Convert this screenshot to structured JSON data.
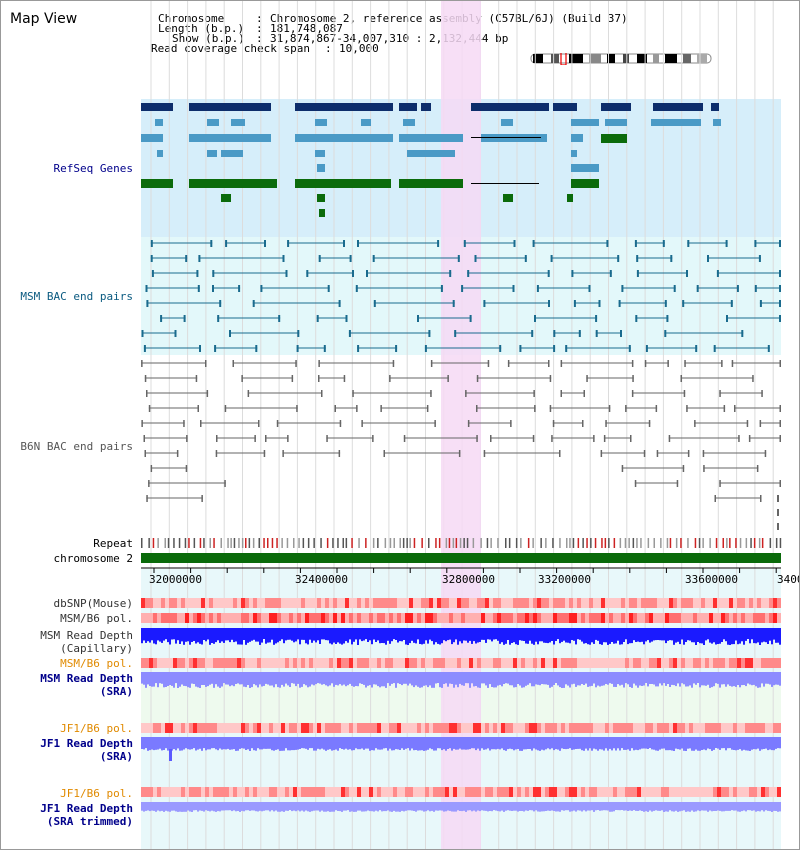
{
  "view_title": "Map View",
  "header": {
    "chromosome_label": "Chromosome",
    "chromosome_value": "Chromosome 2, reference assembly (C57BL/6J) (Build 37)",
    "length_label": "Length (b.p.)",
    "length_value": "181,748,087",
    "show_label": "Show (b.p.)",
    "show_value": "31,874,867-34,007,310 : 2,132,444 bp",
    "coverage_label": "Read coverage check span",
    "coverage_value": "10,000"
  },
  "tracks": {
    "refseq": "RefSeq Genes",
    "msm_bac": "MSM BAC end pairs",
    "b6n_bac": "B6N BAC end pairs",
    "repeat": "Repeat",
    "chromosome": "chromosome 2",
    "dbsnp": "dbSNP(Mouse)",
    "msm_b6_pol_1": "MSM/B6 pol.",
    "msm_depth_cap_1": "MSM Read Depth",
    "msm_depth_cap_2": "(Capillary)",
    "msm_b6_pol_2": "MSM/B6 pol.",
    "msm_depth_sra_1": "MSM Read Depth",
    "msm_depth_sra_2": "(SRA)",
    "jf1_b6_pol_1": "JF1/B6 pol.",
    "jf1_depth_sra_1": "JF1 Read Depth",
    "jf1_depth_sra_2": "(SRA)",
    "jf1_b6_pol_2": "JF1/B6 pol.",
    "jf1_depth_trim_1": "JF1 Read Depth",
    "jf1_depth_trim_2": "(SRA trimmed)"
  },
  "axis": {
    "ticks": [
      "32000000",
      "32400000",
      "32800000",
      "33200000",
      "33600000",
      "3400"
    ]
  },
  "colors": {
    "highlight": "#f6d9f4",
    "refseq_bg": "#d6eefa",
    "msm_bg": "#e3f8fa",
    "gene_dark": "#0d2d6b",
    "gene_mid": "#4a9ac6",
    "gene_green": "#0b6b0b",
    "bac_line": "#1a6b8e",
    "b6n_line": "#666666",
    "depth_blue": "#1a1aff",
    "depth_light": "#8c8cff",
    "pol_red": "#ff5555"
  }
}
